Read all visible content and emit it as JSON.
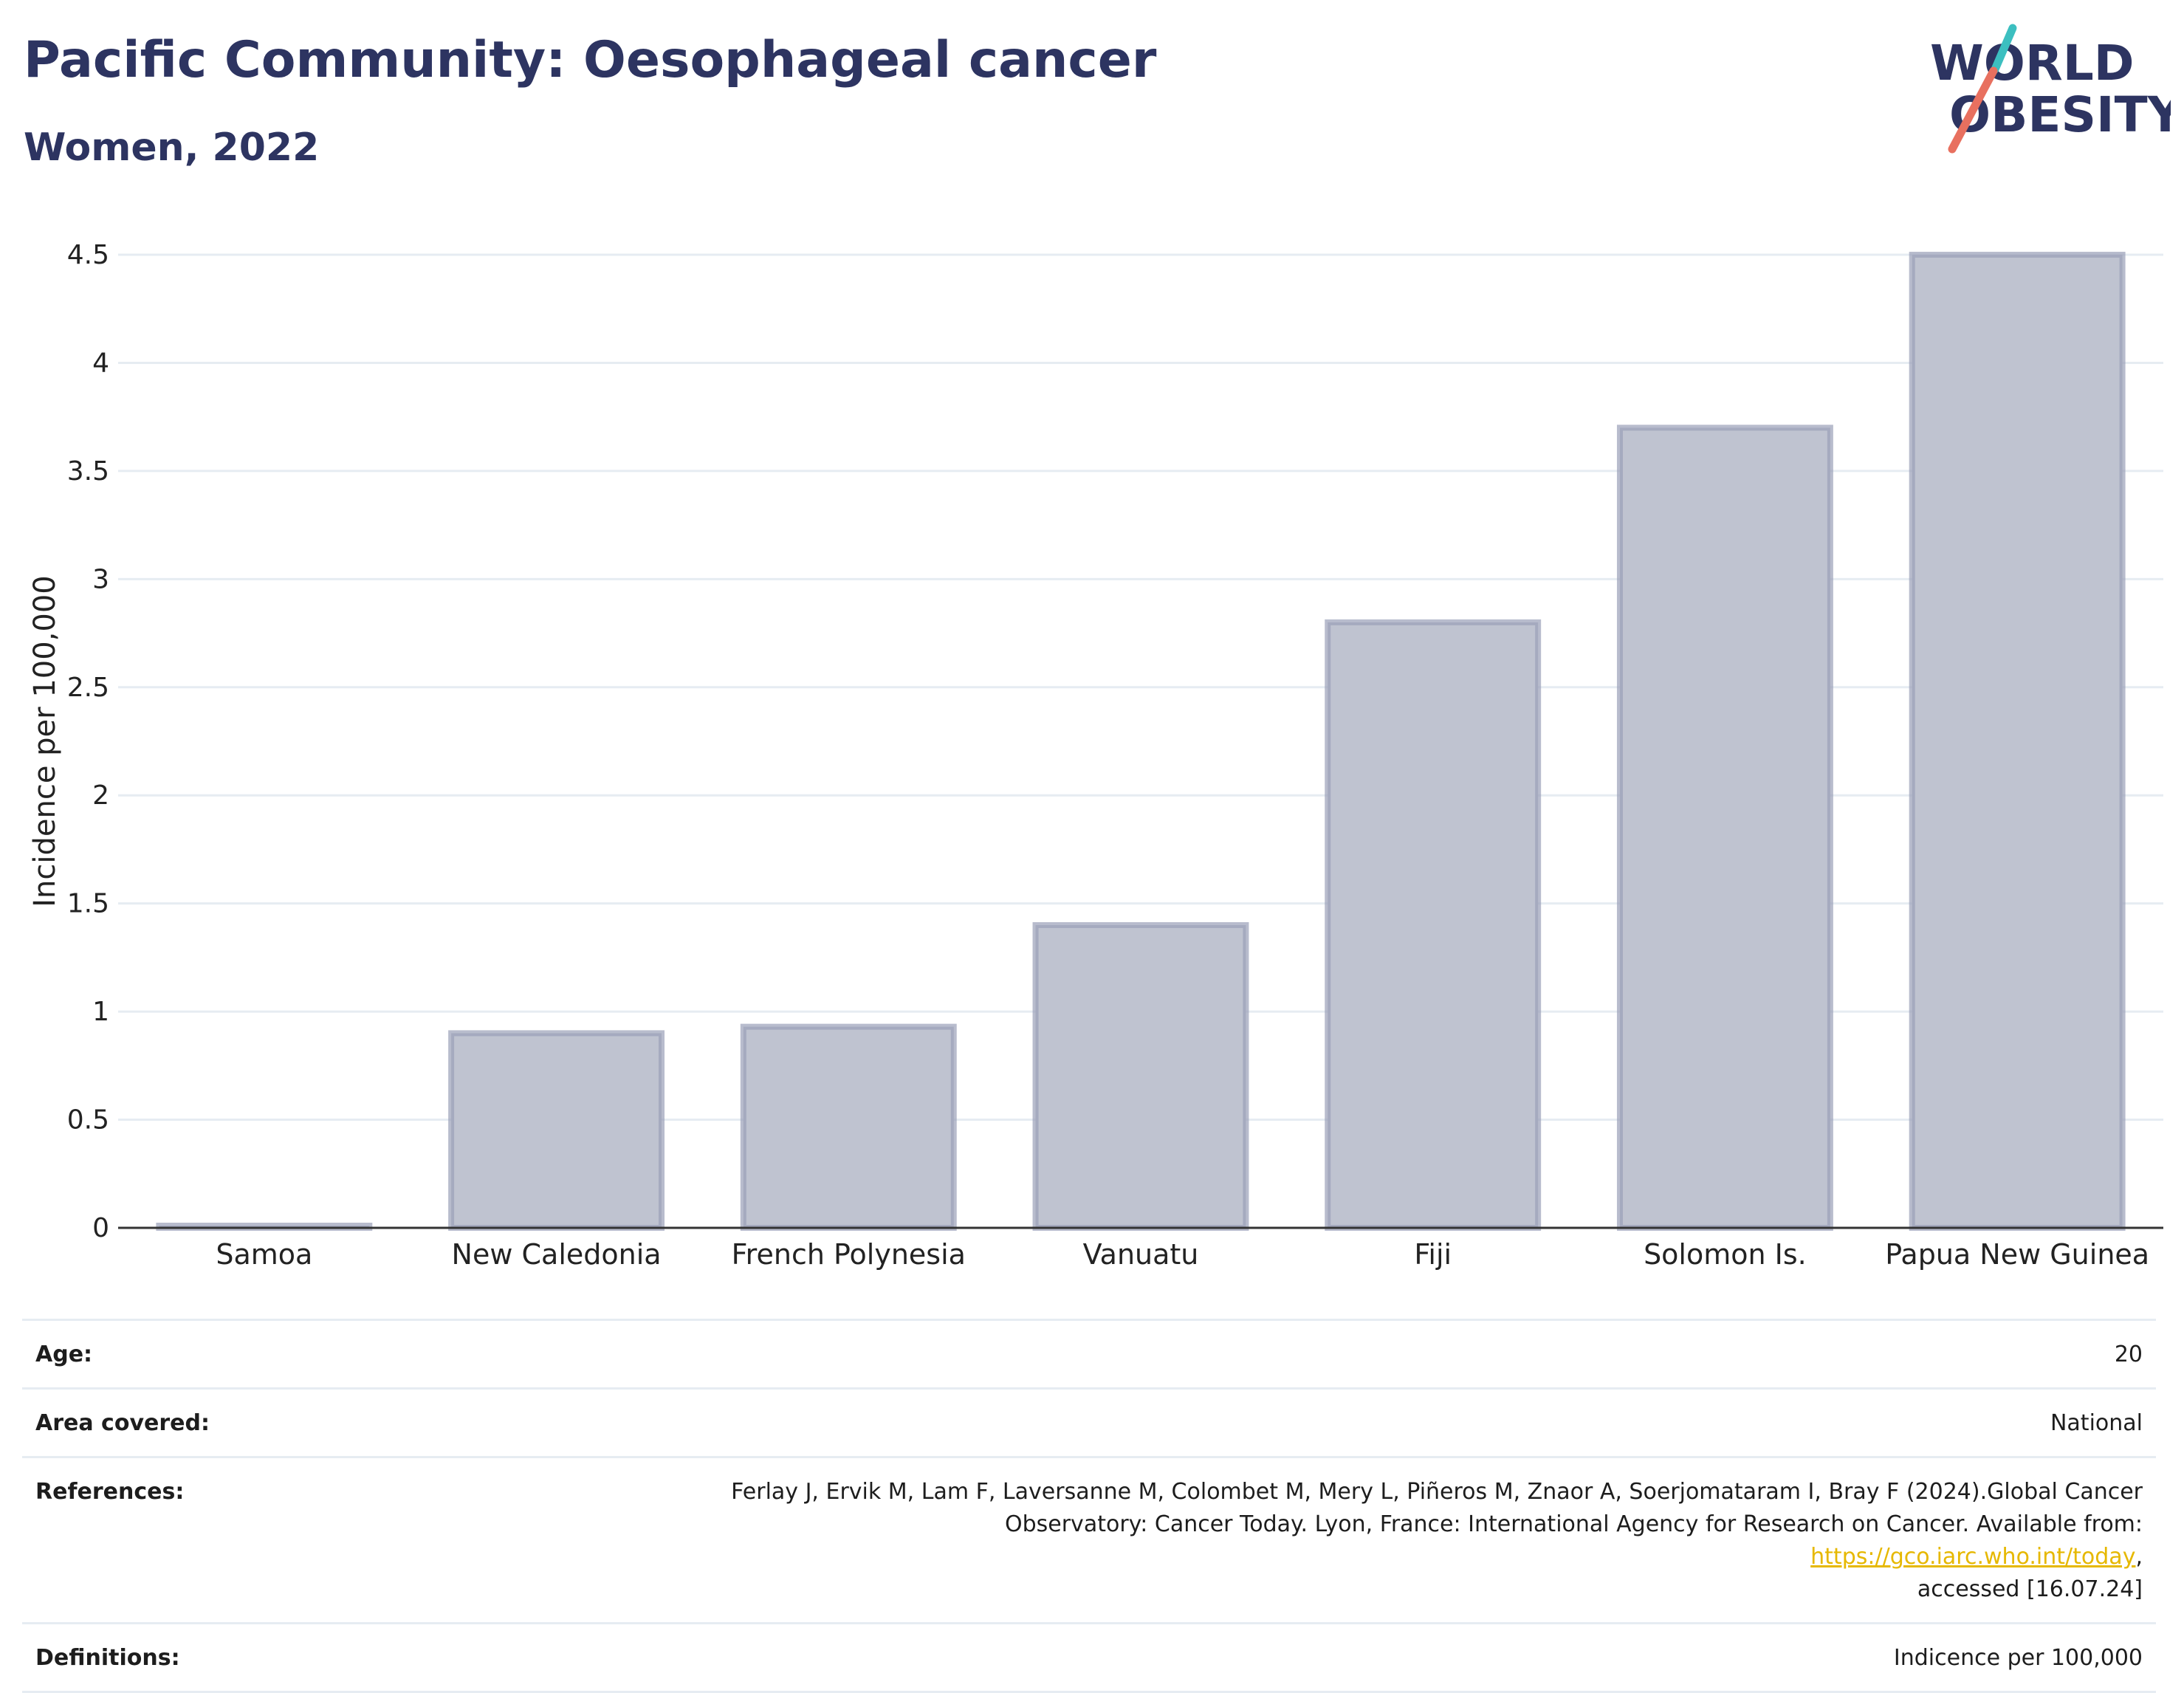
{
  "header": {
    "title": "Pacific Community: Oesophageal cancer",
    "subtitle": "Women, 2022",
    "logo": {
      "line1": "WORLD",
      "line2": "OBESITY"
    }
  },
  "colors": {
    "title": "#2d3461",
    "bar_fill": "#bfc3d0",
    "bar_stroke": "#9a9fb8",
    "grid": "#e6ecf2",
    "axis": "#333333",
    "logo_navy": "#2d3461",
    "logo_teal": "#3cbfc0",
    "logo_coral": "#e8705f",
    "link": "#e6b800"
  },
  "chart_data": {
    "type": "bar",
    "title": "Pacific Community: Oesophageal cancer",
    "subtitle": "Women, 2022",
    "categories": [
      "Samoa",
      "New Caledonia",
      "French Polynesia",
      "Vanuatu",
      "Fiji",
      "Solomon Is.",
      "Papua New Guinea"
    ],
    "values": [
      0.01,
      0.9,
      0.93,
      1.4,
      2.8,
      3.7,
      4.5
    ],
    "xlabel": "",
    "ylabel": "Incidence per 100,000",
    "ylim": [
      0,
      4.5
    ],
    "yticks": [
      0,
      0.5,
      1,
      1.5,
      2,
      2.5,
      3,
      3.5,
      4,
      4.5
    ],
    "ytick_labels": [
      "0",
      "0.5",
      "1",
      "1.5",
      "2",
      "2.5",
      "3",
      "3.5",
      "4",
      "4.5"
    ],
    "grid": true,
    "legend": "none"
  },
  "meta": {
    "age_label": "Age:",
    "age_value": "20",
    "area_label": "Area covered:",
    "area_value": "National",
    "references_label": "References:",
    "references_line1": "Ferlay J, Ervik M, Lam F, Laversanne M, Colombet M, Mery L, Piñeros M, Znaor A, Soerjomataram I, Bray F (2024).Global Cancer",
    "references_line2_prefix": "Observatory: Cancer Today. Lyon, France: International Agency for Research on Cancer. Available from: ",
    "references_link": "https://gco.iarc.who.int/today",
    "references_line2_suffix": ",",
    "references_line3": "accessed [16.07.24]",
    "definitions_label": "Definitions:",
    "definitions_value": "Indicence per 100,000"
  }
}
